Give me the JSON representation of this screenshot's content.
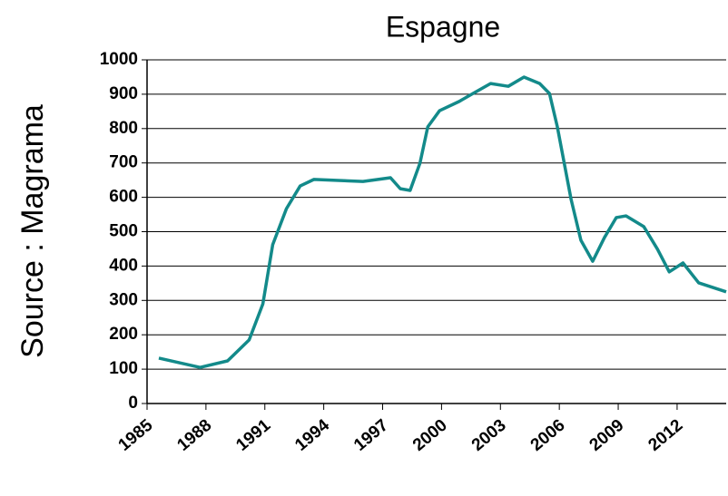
{
  "chart_data": {
    "type": "line",
    "title": "Espagne",
    "y_label": "Source : Magrama",
    "x": [
      1985.6,
      1987.7,
      1989.1,
      1990.2,
      1990.9,
      1991.4,
      1992.1,
      1992.8,
      1993.5,
      1996.0,
      1997.4,
      1997.9,
      1998.4,
      1998.9,
      1999.3,
      1999.9,
      2000.9,
      2001.6,
      2002.5,
      2003.4,
      2004.2,
      2005.0,
      2005.5,
      2005.9,
      2006.6,
      2007.1,
      2007.7,
      2008.3,
      2008.9,
      2009.4,
      2010.3,
      2011.0,
      2011.6,
      2012.3,
      2013.1,
      2014.5
    ],
    "series": [
      {
        "name": "Espagne",
        "color": "#138a8a",
        "values": [
          132,
          105,
          124,
          185,
          290,
          462,
          567,
          633,
          652,
          646,
          657,
          625,
          620,
          699,
          805,
          852,
          879,
          902,
          931,
          923,
          950,
          931,
          902,
          805,
          594,
          475,
          414,
          483,
          541,
          546,
          515,
          449,
          383,
          409,
          351,
          325
        ]
      }
    ],
    "xlim": [
      1985,
      2014.5
    ],
    "xticks": [
      1985,
      1988,
      1991,
      1994,
      1997,
      2000,
      2003,
      2006,
      2009,
      2012
    ],
    "ylim": [
      0,
      1000
    ],
    "yticks": [
      0,
      100,
      200,
      300,
      400,
      500,
      600,
      700,
      800,
      900,
      1000
    ],
    "grid": true
  }
}
